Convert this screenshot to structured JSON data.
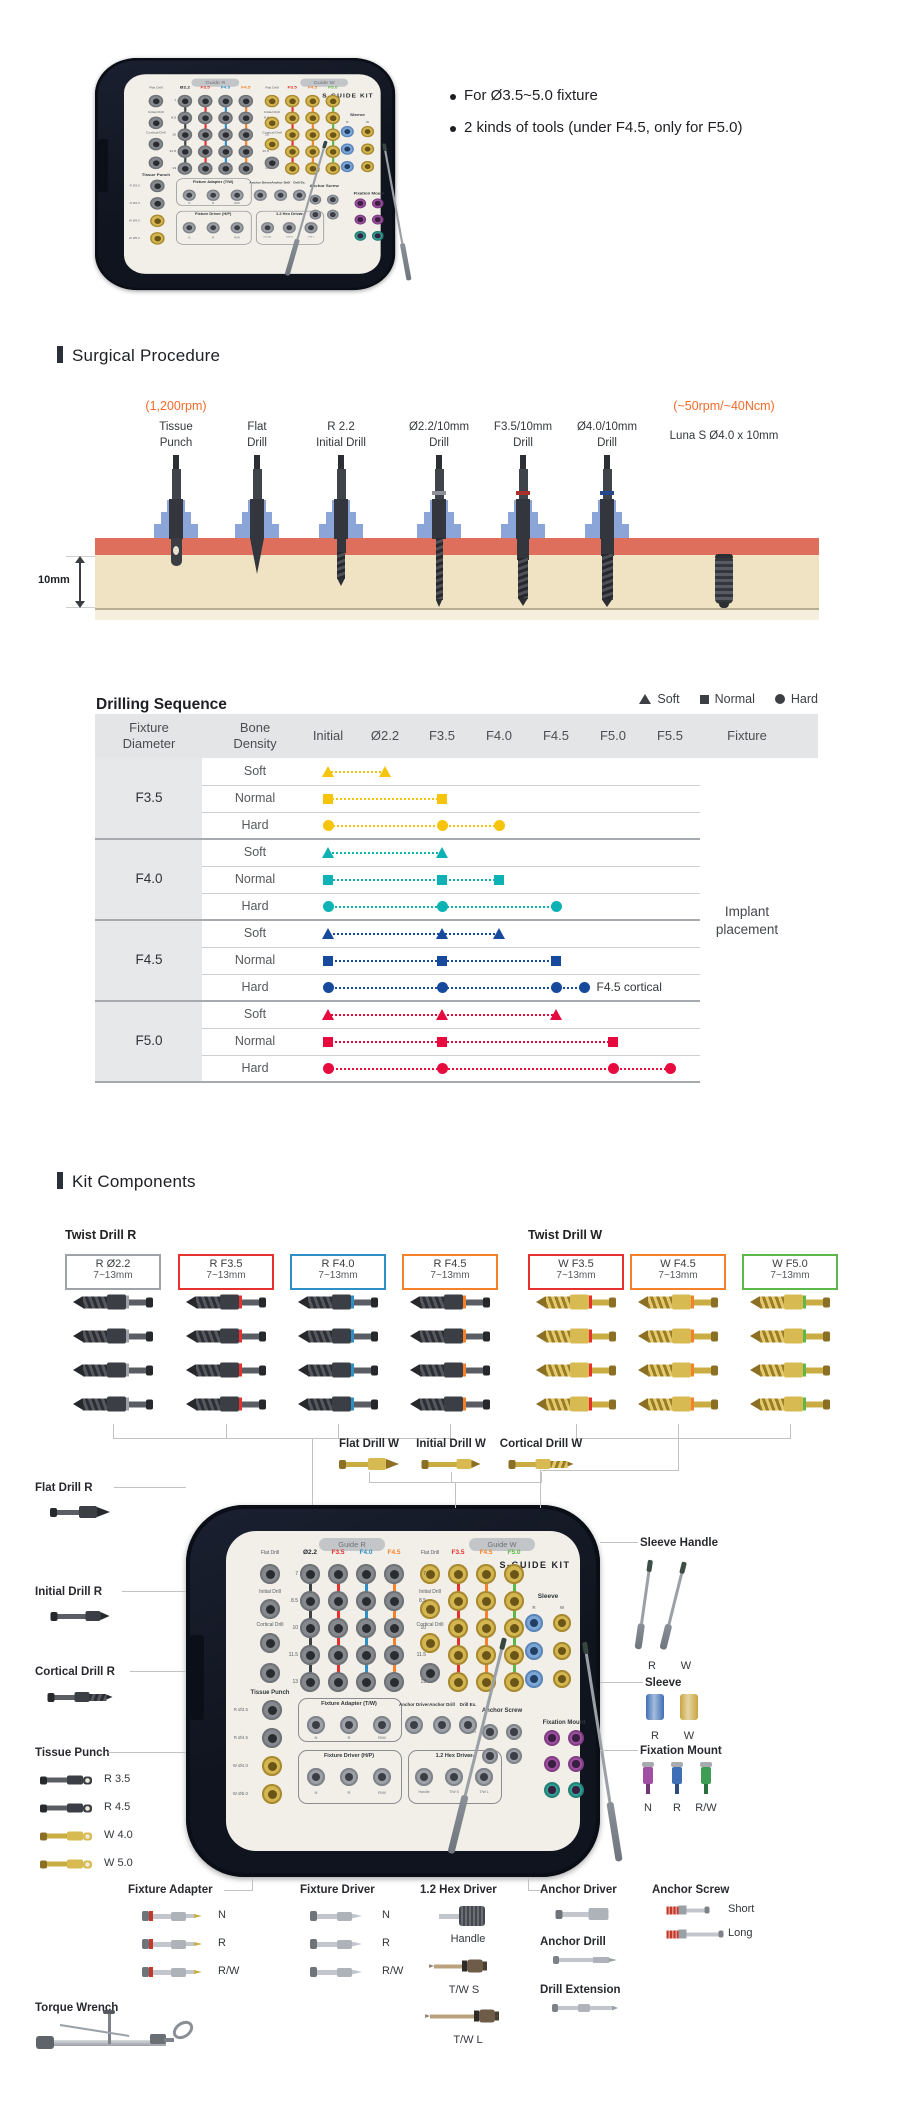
{
  "photo": {
    "brand": "S-Guide Kit",
    "bullets": [
      "For Ø3.5~5.0 fixture",
      "2 kinds of tools (under F4.5, only for F5.0)"
    ]
  },
  "kit_labels": {
    "brand": "S-Guide Kit",
    "guide_r": "Guide R",
    "guide_w": "Guide W",
    "r_cols": [
      "Ø2.2",
      "F3.5",
      "F4.0",
      "F4.5"
    ],
    "w_cols": [
      "F3.5",
      "F4.5",
      "F5.0"
    ],
    "flat_drill": "Flat Drill",
    "initial_drill": "Initial Drill",
    "cortical_drill": "Cortical Drill",
    "row_numbers": [
      "7",
      "8.5",
      "10",
      "11.5",
      "13"
    ],
    "tissue_punch": "Tissue Punch",
    "tissue_sizes": [
      "R Ø3.5",
      "R Ø4.5",
      "W Ø4.0",
      "W Ø5.0"
    ],
    "sleeve": "Sleeve",
    "sleeve_cols": [
      "R",
      "W"
    ],
    "anchor_screw": "Anchor Screw",
    "anchor_sizes": [
      "Short",
      "Long"
    ],
    "fixation_mount": "Fixation Mount",
    "adapter_box": "Fixture Adapter (T/W)",
    "driver_box": "Fixture Driver (H/P)",
    "hex_box": "1.2 Hex Driver",
    "adapter_items": [
      "N",
      "R",
      "R/W"
    ],
    "hex_items": [
      "Handle",
      "T/W S",
      "T/W L"
    ],
    "mid_labels": [
      "Anchor Driver",
      "Anchor Drill",
      "Drill Ex."
    ]
  },
  "surgical": {
    "title": "Surgical Procedure",
    "rpm_left": "(1,200rpm)",
    "rpm_right": "(~50rpm/~40Ncm)",
    "tools": [
      {
        "line1": "Tissue",
        "line2": "Punch",
        "type": "tissue-punch",
        "band": ""
      },
      {
        "line1": "Flat",
        "line2": "Drill",
        "type": "flat-drill",
        "band": ""
      },
      {
        "line1": "R 2.2",
        "line2": "Initial Drill",
        "type": "initial-drill",
        "band": ""
      },
      {
        "line1": "Ø2.2/10mm",
        "line2": "Drill",
        "type": "twist-22",
        "band": "#8d9096"
      },
      {
        "line1": "F3.5/10mm",
        "line2": "Drill",
        "type": "twist-35",
        "band": "#a8322b"
      },
      {
        "line1": "Ø4.0/10mm",
        "line2": "Drill",
        "type": "twist-40",
        "band": "#27488f"
      }
    ],
    "implant_label": "Luna S Ø4.0 x 10mm",
    "depth_label": "10mm"
  },
  "chart_data": {
    "type": "sequence-chart",
    "title": "Drilling Sequence",
    "legend": [
      {
        "marker": "triangle",
        "label": "Soft"
      },
      {
        "marker": "square",
        "label": "Normal"
      },
      {
        "marker": "circle",
        "label": "Hard"
      }
    ],
    "header": {
      "fixture": [
        "Fixture",
        "Diameter"
      ],
      "density": [
        "Bone",
        "Density"
      ],
      "drills": [
        "Initial",
        "Ø2.2",
        "F3.5",
        "F4.0",
        "F4.5",
        "F5.0",
        "F5.5"
      ],
      "last": "Fixture"
    },
    "note": [
      "Implant",
      "placement"
    ],
    "groups": [
      {
        "fixture": "F3.5",
        "color": "#f6c50b",
        "rows": [
          {
            "density": "Soft",
            "marker": "triangle",
            "points": [
              0,
              1
            ]
          },
          {
            "density": "Normal",
            "marker": "square",
            "points": [
              0,
              2
            ]
          },
          {
            "density": "Hard",
            "marker": "circle",
            "points": [
              0,
              2,
              3
            ]
          }
        ]
      },
      {
        "fixture": "F4.0",
        "color": "#0cb2b4",
        "rows": [
          {
            "density": "Soft",
            "marker": "triangle",
            "points": [
              0,
              2
            ]
          },
          {
            "density": "Normal",
            "marker": "square",
            "points": [
              0,
              2,
              3
            ]
          },
          {
            "density": "Hard",
            "marker": "circle",
            "points": [
              0,
              2,
              4
            ]
          }
        ]
      },
      {
        "fixture": "F4.5",
        "color": "#17499c",
        "rows": [
          {
            "density": "Soft",
            "marker": "triangle",
            "points": [
              0,
              2,
              3
            ]
          },
          {
            "density": "Normal",
            "marker": "square",
            "points": [
              0,
              2,
              4
            ]
          },
          {
            "density": "Hard",
            "marker": "circle",
            "points": [
              0,
              2,
              4,
              4.5
            ],
            "annotation": "F4.5 cortical"
          }
        ]
      },
      {
        "fixture": "F5.0",
        "color": "#e60a3f",
        "rows": [
          {
            "density": "Soft",
            "marker": "triangle",
            "points": [
              0,
              2,
              4
            ]
          },
          {
            "density": "Normal",
            "marker": "square",
            "points": [
              0,
              2,
              5
            ]
          },
          {
            "density": "Hard",
            "marker": "circle",
            "points": [
              0,
              2,
              5,
              6
            ]
          }
        ]
      }
    ]
  },
  "components": {
    "title": "Kit Components",
    "twist_r_title": "Twist Drill R",
    "twist_w_title": "Twist Drill W",
    "boxes_r": [
      {
        "name": "R Ø2.2",
        "range": "7~13mm",
        "color": "#9fa3a7",
        "finish": "dark"
      },
      {
        "name": "R F3.5",
        "range": "7~13mm",
        "color": "#e8312e",
        "finish": "dark"
      },
      {
        "name": "R F4.0",
        "range": "7~13mm",
        "color": "#2e8fc6",
        "finish": "dark"
      },
      {
        "name": "R F4.5",
        "range": "7~13mm",
        "color": "#f5822a",
        "finish": "dark"
      }
    ],
    "boxes_w": [
      {
        "name": "W F3.5",
        "range": "7~13mm",
        "color": "#e8312e",
        "finish": "gold"
      },
      {
        "name": "W F4.5",
        "range": "7~13mm",
        "color": "#f5822a",
        "finish": "gold"
      },
      {
        "name": "W F5.0",
        "range": "7~13mm",
        "color": "#5cb848",
        "finish": "gold"
      }
    ],
    "w_singles": [
      "Flat Drill W",
      "Initial Drill W",
      "Cortical Drill W"
    ],
    "left_callouts": [
      "Flat Drill R",
      "Initial Drill R",
      "Cortical Drill R",
      "Tissue Punch"
    ],
    "tissue_items": [
      {
        "label": "R 3.5",
        "finish": "dark"
      },
      {
        "label": "R 4.5",
        "finish": "dark"
      },
      {
        "label": "W 4.0",
        "finish": "gold"
      },
      {
        "label": "W 5.0",
        "finish": "gold"
      }
    ],
    "right_callouts": {
      "sleeve_handle": {
        "title": "Sleeve Handle",
        "items": [
          "R",
          "W"
        ]
      },
      "sleeve": {
        "title": "Sleeve",
        "items": [
          {
            "label": "R",
            "color": "#3f6fb4"
          },
          {
            "label": "W",
            "color": "#c9a53f"
          }
        ]
      },
      "fixation_mount": {
        "title": "Fixation Mount",
        "items": [
          {
            "label": "N",
            "color": "#a04fa3"
          },
          {
            "label": "R",
            "color": "#3f6fb4"
          },
          {
            "label": "R/W",
            "color": "#3e9e55"
          }
        ]
      }
    },
    "bottom": {
      "fixture_adapter": {
        "title": "Fixture Adapter",
        "items": [
          "N",
          "R",
          "R/W"
        ]
      },
      "fixture_driver": {
        "title": "Fixture Driver",
        "items": [
          "N",
          "R",
          "R/W"
        ]
      },
      "hex_driver": {
        "title": "1.2 Hex Driver",
        "items": [
          "Handle",
          "T/W S",
          "T/W L"
        ]
      },
      "anchor_driver": {
        "title": "Anchor Driver"
      },
      "anchor_screw": {
        "title": "Anchor Screw",
        "items": [
          "Short",
          "Long"
        ]
      },
      "anchor_drill": {
        "title": "Anchor Drill"
      },
      "drill_extension": {
        "title": "Drill Extension"
      },
      "torque_wrench": {
        "title": "Torque Wrench"
      }
    }
  }
}
